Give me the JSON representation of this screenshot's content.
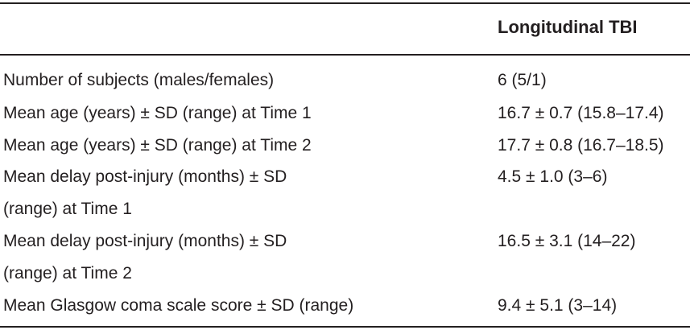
{
  "table": {
    "column_headers": [
      "",
      "Longitudinal TBI"
    ],
    "rows": [
      {
        "label_lines": [
          "Number of subjects (males/females)"
        ],
        "value": "6 (5/1)"
      },
      {
        "label_lines": [
          "Mean age (years) ± SD (range) at Time 1"
        ],
        "value": "16.7 ± 0.7 (15.8–17.4)"
      },
      {
        "label_lines": [
          "Mean age (years) ± SD (range) at Time 2"
        ],
        "value": "17.7 ± 0.8 (16.7–18.5)"
      },
      {
        "label_lines": [
          "Mean delay post-injury (months) ± SD",
          "(range) at Time 1"
        ],
        "value": "4.5 ± 1.0 (3–6)"
      },
      {
        "label_lines": [
          "Mean delay post-injury (months) ± SD",
          "(range) at Time 2"
        ],
        "value": "16.5 ± 3.1 (14–22)"
      },
      {
        "label_lines": [
          "Mean Glasgow coma scale score ± SD (range)"
        ],
        "value": "9.4 ± 5.1 (3–14)"
      }
    ]
  }
}
